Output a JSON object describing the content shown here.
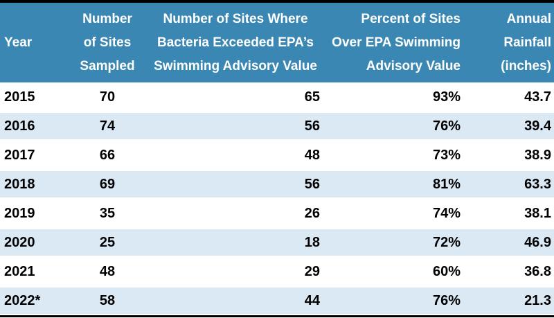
{
  "chart_data": {
    "type": "table",
    "columns": [
      "Year",
      "Number of Sites Sampled",
      "Number of Sites Where Bacteria Exceeded EPA’s Swimming Advisory Value",
      "Percent of Sites Over EPA Swimming Advisory Value",
      "Annual Rainfall (inches)"
    ],
    "rows": [
      [
        "2015",
        70,
        65,
        "93%",
        43.7
      ],
      [
        "2016",
        74,
        56,
        "76%",
        39.4
      ],
      [
        "2017",
        66,
        48,
        "73%",
        38.9
      ],
      [
        "2018",
        69,
        56,
        "81%",
        63.3
      ],
      [
        "2019",
        35,
        26,
        "74%",
        38.1
      ],
      [
        "2020",
        25,
        18,
        "72%",
        46.9
      ],
      [
        "2021",
        48,
        29,
        "60%",
        36.8
      ],
      [
        "2022*",
        58,
        44,
        "76%",
        21.3
      ]
    ],
    "title": "",
    "layout_hints": {
      "striped_rows": [
        "2016",
        "2018",
        "2020",
        "2022*"
      ],
      "header_position": "top",
      "numeric_alignment": "right"
    }
  },
  "header": {
    "columns": [
      {
        "lines": [
          "Year"
        ]
      },
      {
        "lines": [
          "Number",
          "of Sites",
          "Sampled"
        ]
      },
      {
        "lines": [
          "Number of Sites Where",
          "Bacteria Exceeded EPA’s",
          "Swimming Advisory Value"
        ]
      },
      {
        "lines": [
          "Percent of Sites",
          "Over EPA Swimming",
          "Advisory Value"
        ]
      },
      {
        "lines": [
          "Annual",
          "Rainfall",
          "(inches)"
        ]
      }
    ]
  },
  "colors": {
    "header_bg": "#3a87b4",
    "header_text": "#ffffff",
    "stripe_bg": "#dbe9f5",
    "body_text": "#000000",
    "border": "#000000"
  }
}
